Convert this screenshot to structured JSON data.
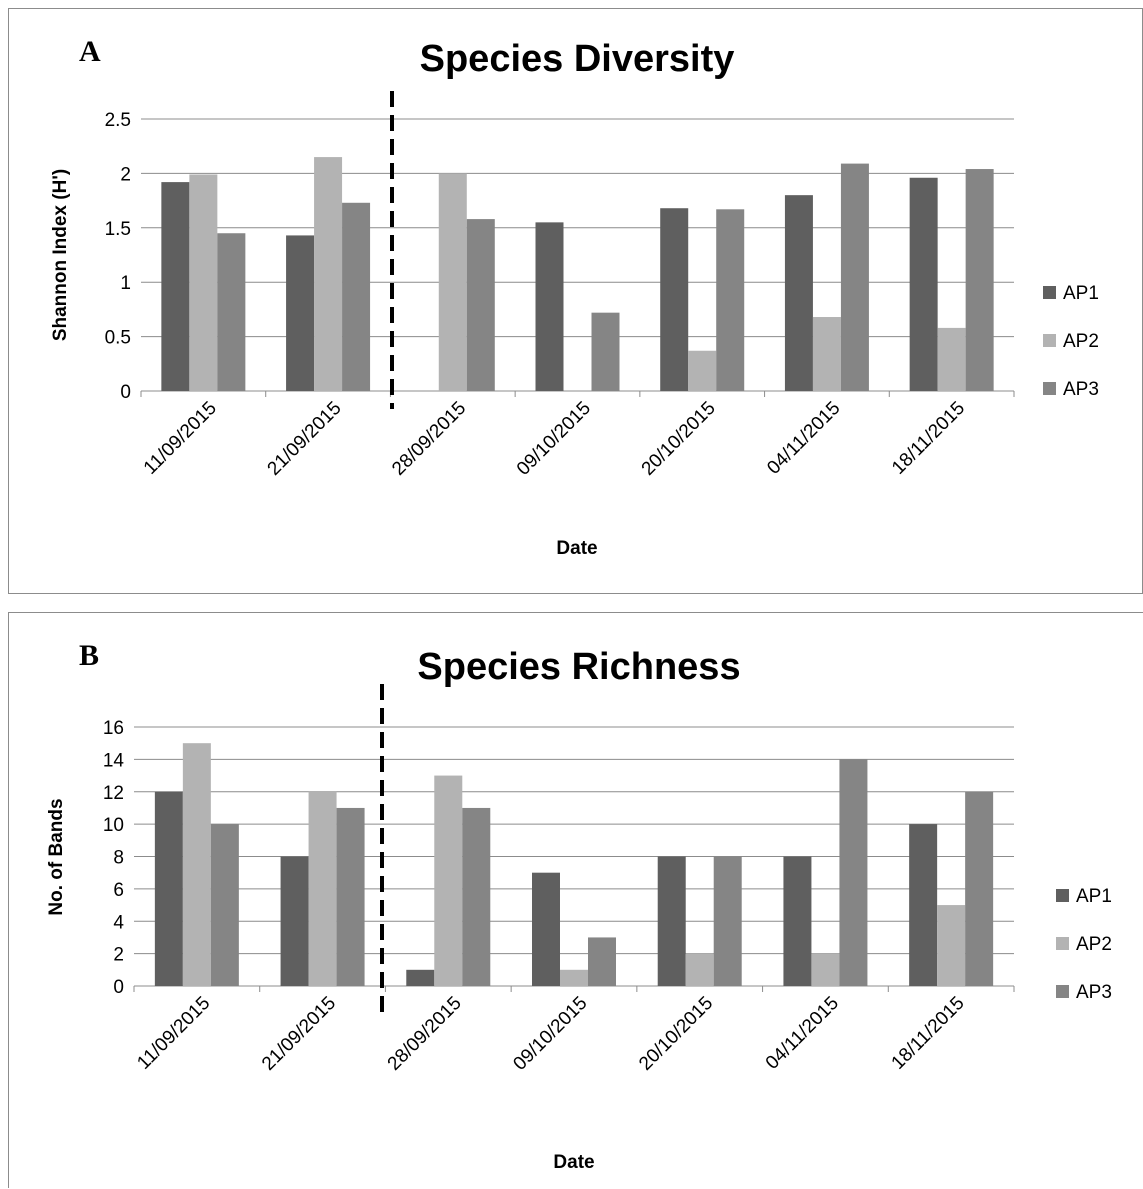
{
  "colors": {
    "AP1": "#5f5f5f",
    "AP2": "#b3b3b3",
    "AP3": "#858585",
    "grid": "#8c8c8c",
    "axis": "#8c8c8c",
    "marker": "#000000"
  },
  "panels": {
    "a": {
      "letter": "A"
    },
    "b": {
      "letter": "B"
    }
  },
  "chart_data": [
    {
      "type": "bar",
      "title": "Species Diversity",
      "xlabel": "Date",
      "ylabel": "Shannon Index (H')",
      "ylim": [
        0,
        2.5
      ],
      "yticks": [
        "0",
        "0.5",
        "1",
        "1.5",
        "2",
        "2.5"
      ],
      "categories": [
        "11/09/2015",
        "21/09/2015",
        "28/09/2015",
        "09/10/2015",
        "20/10/2015",
        "04/11/2015",
        "18/11/2015"
      ],
      "series": [
        {
          "name": "AP1",
          "values": [
            1.92,
            1.43,
            0,
            1.55,
            1.68,
            1.8,
            1.96
          ]
        },
        {
          "name": "AP2",
          "values": [
            1.99,
            2.15,
            2.0,
            0,
            0.37,
            0.68,
            0.58
          ]
        },
        {
          "name": "AP3",
          "values": [
            1.45,
            1.73,
            1.58,
            0.72,
            1.67,
            2.09,
            2.04
          ]
        }
      ],
      "grid": true,
      "legend": "right"
    },
    {
      "type": "bar",
      "title": "Species Richness",
      "xlabel": "Date",
      "ylabel": "No. of Bands",
      "ylim": [
        0,
        16
      ],
      "yticks": [
        "0",
        "2",
        "4",
        "6",
        "8",
        "10",
        "12",
        "14",
        "16"
      ],
      "categories": [
        "11/09/2015",
        "21/09/2015",
        "28/09/2015",
        "09/10/2015",
        "20/10/2015",
        "04/11/2015",
        "18/11/2015"
      ],
      "series": [
        {
          "name": "AP1",
          "values": [
            12,
            8,
            1,
            7,
            8,
            8,
            10
          ]
        },
        {
          "name": "AP2",
          "values": [
            15,
            12,
            13,
            1,
            2,
            2,
            5
          ]
        },
        {
          "name": "AP3",
          "values": [
            10,
            11,
            11,
            3,
            8,
            14,
            12
          ]
        }
      ],
      "grid": true,
      "legend": "right"
    }
  ]
}
